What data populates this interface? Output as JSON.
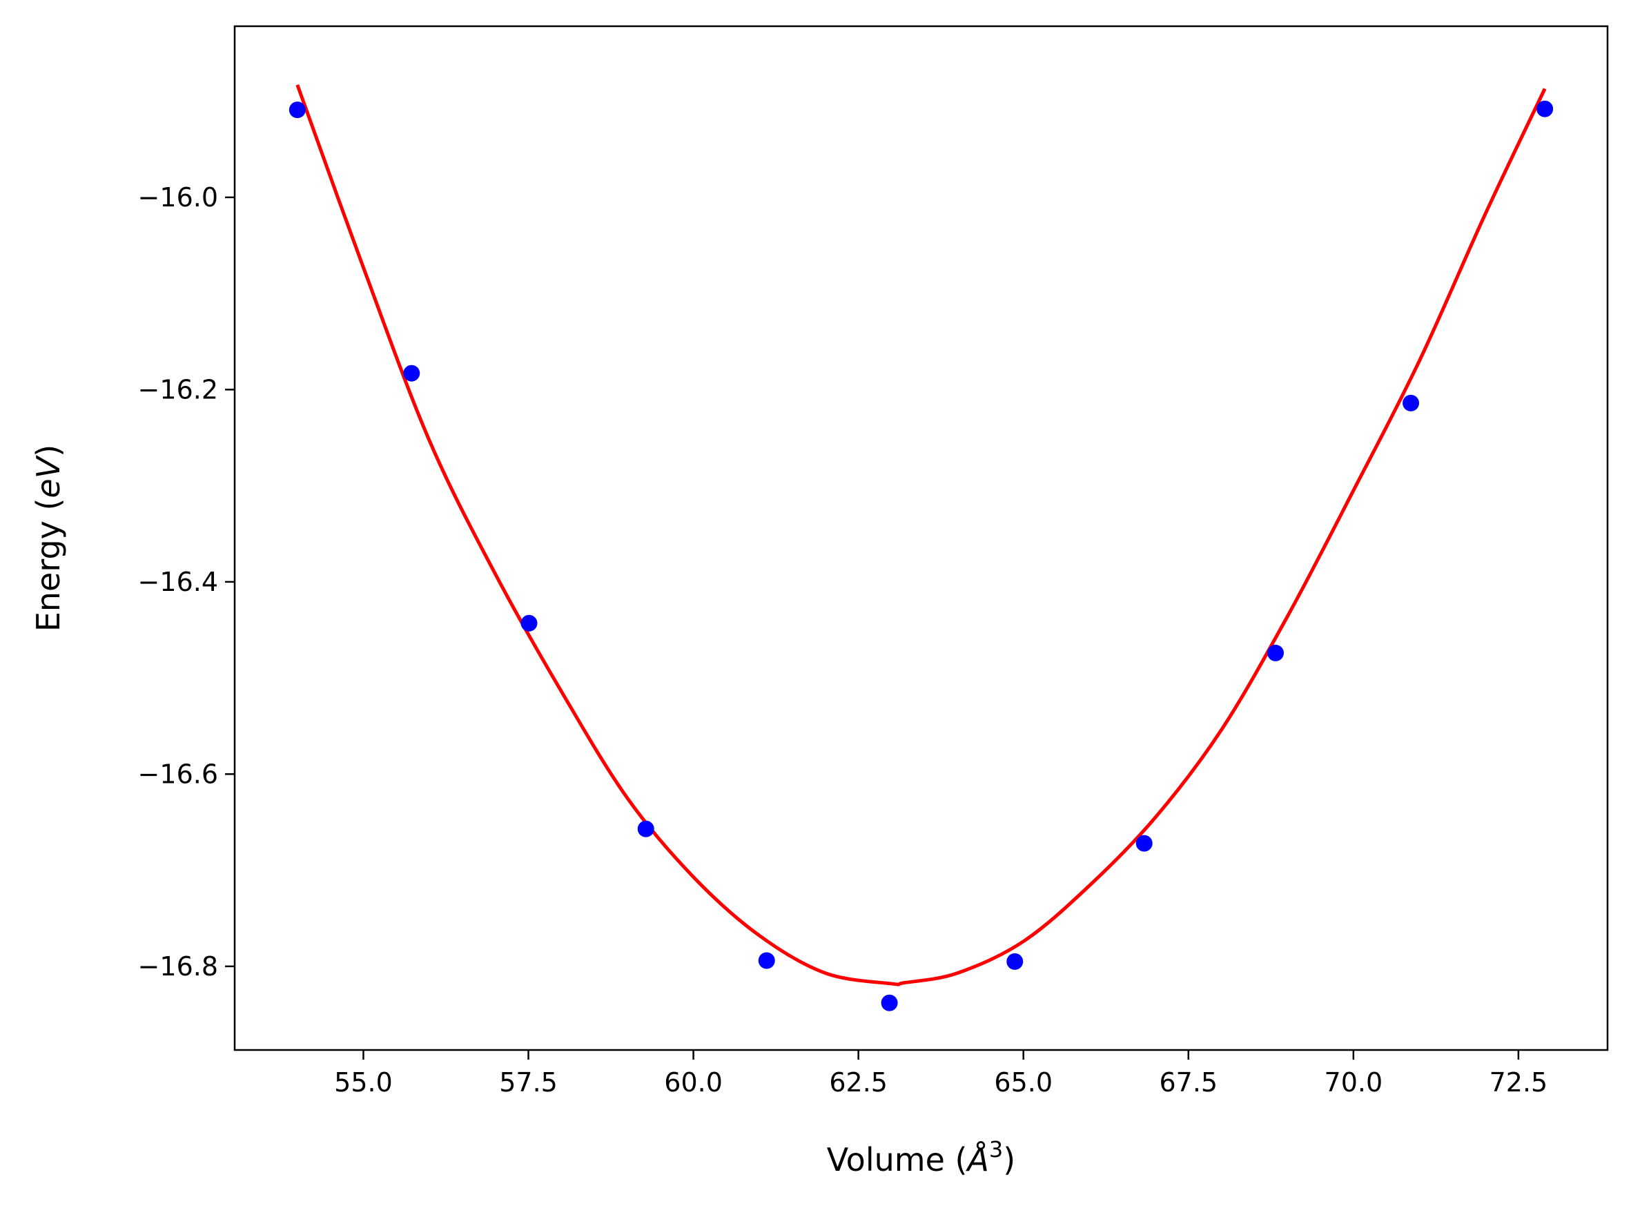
{
  "chart_data": {
    "type": "scatter",
    "title": "",
    "xlabel": "Volume ($\\AA^3$)",
    "xlabel_display": {
      "prefix": "Volume (",
      "unit_symbol": "Å",
      "exponent": "3",
      "suffix": ")"
    },
    "ylabel": "Energy ($eV$)",
    "ylabel_display": {
      "prefix": "Energy (",
      "unit": "eV",
      "suffix": ")"
    },
    "xlim": [
      53.05,
      73.85
    ],
    "ylim": [
      -16.887,
      -15.822
    ],
    "xticks": [
      55.0,
      57.5,
      60.0,
      62.5,
      65.0,
      67.5,
      70.0,
      72.5
    ],
    "xtick_labels": [
      "55.0",
      "57.5",
      "60.0",
      "62.5",
      "65.0",
      "67.5",
      "70.0",
      "72.5"
    ],
    "yticks": [
      -16.0,
      -16.2,
      -16.4,
      -16.6,
      -16.8
    ],
    "ytick_labels": [
      "−16.0",
      "−16.2",
      "−16.4",
      "−16.6",
      "−16.8"
    ],
    "grid": false,
    "series": [
      {
        "kind": "scatter",
        "color": "#0000ff",
        "x": [
          54.0,
          55.73,
          57.51,
          59.28,
          61.11,
          62.97,
          64.87,
          66.83,
          68.82,
          70.87,
          72.9
        ],
        "y": [
          -15.909,
          -16.183,
          -16.443,
          -16.657,
          -16.794,
          -16.838,
          -16.795,
          -16.672,
          -16.474,
          -16.214,
          -15.908
        ]
      },
      {
        "kind": "line",
        "color": "#ff0000",
        "x": [
          54.0,
          55.0,
          56.0,
          57.0,
          58.0,
          59.0,
          60.0,
          61.0,
          62.0,
          63.0,
          63.2,
          64.0,
          65.0,
          66.0,
          67.0,
          68.0,
          69.0,
          70.0,
          71.0,
          72.0,
          72.9
        ],
        "y": [
          -15.883,
          -16.073,
          -16.253,
          -16.392,
          -16.514,
          -16.625,
          -16.707,
          -16.768,
          -16.807,
          -16.818,
          -16.817,
          -16.807,
          -16.774,
          -16.716,
          -16.645,
          -16.554,
          -16.436,
          -16.305,
          -16.17,
          -16.017,
          -15.887
        ]
      }
    ]
  }
}
